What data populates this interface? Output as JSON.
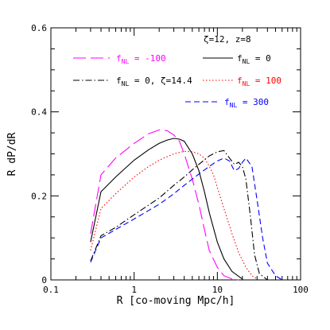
{
  "chart_data": {
    "type": "line",
    "title": "",
    "annotation": "ζ=12, z=8",
    "xlabel": "R [co-moving Mpc/h]",
    "ylabel": "R dP/dR",
    "xscale": "log",
    "xlim": [
      0.1,
      100
    ],
    "ylim": [
      0,
      0.6
    ],
    "x_ticks": [
      0.1,
      1,
      10,
      100
    ],
    "x_tick_labels": [
      "0.1",
      "1",
      "10",
      "100"
    ],
    "y_ticks": [
      0,
      0.2,
      0.4,
      0.6
    ],
    "y_tick_labels": [
      "0",
      "0.2",
      "0.4",
      "0.6"
    ],
    "legend_position": "top",
    "series": [
      {
        "name": "f_NL = -100",
        "label_main": "f",
        "label_sub": "NL",
        "label_rest": " = -100",
        "color": "#ff00ff",
        "dash": "dash-long",
        "x": [
          0.3,
          0.4,
          0.6,
          1.0,
          1.5,
          2.0,
          2.5,
          3.0,
          3.5,
          4.0,
          5.0,
          6.0,
          7.0,
          8.0,
          10,
          12,
          15,
          18
        ],
        "y": [
          0.11,
          0.25,
          0.29,
          0.325,
          0.348,
          0.357,
          0.355,
          0.345,
          0.33,
          0.3,
          0.24,
          0.18,
          0.12,
          0.07,
          0.03,
          0.01,
          0.002,
          0.0
        ]
      },
      {
        "name": "f_NL = 0",
        "label_main": "f",
        "label_sub": "NL",
        "label_rest": " = 0",
        "color": "#000000",
        "dash": "solid",
        "x": [
          0.3,
          0.4,
          0.6,
          1.0,
          1.5,
          2.0,
          2.5,
          3.0,
          3.5,
          4.0,
          5.0,
          6.0,
          7.0,
          8.0,
          10,
          12,
          15,
          20
        ],
        "y": [
          0.09,
          0.21,
          0.245,
          0.285,
          0.31,
          0.325,
          0.333,
          0.337,
          0.335,
          0.33,
          0.3,
          0.26,
          0.21,
          0.16,
          0.09,
          0.05,
          0.02,
          0.002
        ]
      },
      {
        "name": "f_NL = 100",
        "label_main": "f",
        "label_sub": "NL",
        "label_rest": " = 100",
        "color": "#ff0000",
        "dash": "dot",
        "x": [
          0.3,
          0.4,
          0.6,
          1.0,
          1.5,
          2.0,
          3.0,
          4.0,
          5.0,
          6.0,
          7.0,
          8.0,
          9.0,
          10,
          12,
          15,
          18,
          22,
          26,
          30
        ],
        "y": [
          0.07,
          0.17,
          0.205,
          0.245,
          0.27,
          0.285,
          0.3,
          0.306,
          0.305,
          0.3,
          0.29,
          0.27,
          0.25,
          0.22,
          0.17,
          0.11,
          0.065,
          0.03,
          0.01,
          0.002
        ]
      },
      {
        "name": "f_NL = 0, ζ=14.4",
        "label_main": "f",
        "label_sub": "NL",
        "label_rest": " = 0, ζ=14.4",
        "color": "#000000",
        "dash": "dashdot",
        "x": [
          0.3,
          0.4,
          0.6,
          1.0,
          2.0,
          3.0,
          4.0,
          5.0,
          6.0,
          8.0,
          10,
          12,
          14,
          16,
          18,
          20,
          22,
          25,
          28,
          32,
          40
        ],
        "y": [
          0.045,
          0.105,
          0.125,
          0.155,
          0.195,
          0.225,
          0.245,
          0.262,
          0.275,
          0.295,
          0.305,
          0.308,
          0.29,
          0.275,
          0.28,
          0.27,
          0.24,
          0.15,
          0.06,
          0.015,
          0.0
        ]
      },
      {
        "name": "f_NL = 300",
        "label_main": "f",
        "label_sub": "NL",
        "label_rest": " = 300",
        "color": "#0000ff",
        "dash": "dash",
        "x": [
          0.3,
          0.4,
          0.6,
          1.0,
          2.0,
          3.0,
          4.0,
          5.0,
          6.0,
          8.0,
          10,
          12,
          14,
          16,
          18,
          20,
          22,
          26,
          30,
          35,
          40,
          50,
          60
        ],
        "y": [
          0.042,
          0.1,
          0.12,
          0.145,
          0.18,
          0.205,
          0.225,
          0.24,
          0.252,
          0.27,
          0.283,
          0.29,
          0.283,
          0.26,
          0.265,
          0.28,
          0.29,
          0.27,
          0.19,
          0.1,
          0.04,
          0.01,
          0.0
        ]
      }
    ]
  }
}
